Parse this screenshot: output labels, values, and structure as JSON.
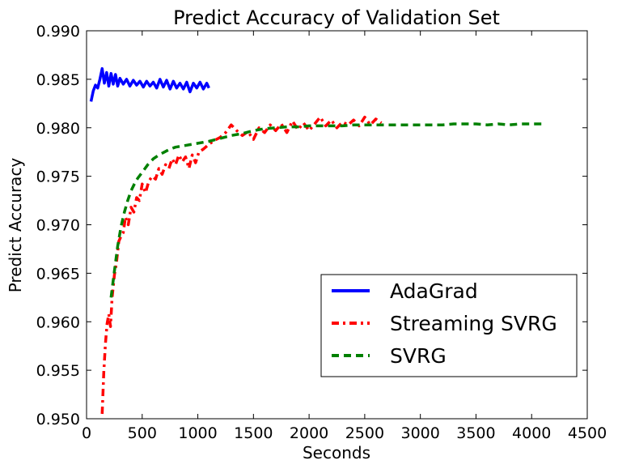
{
  "chart_data": {
    "type": "line",
    "title": "Predict Accuracy of Validation Set",
    "xlabel": "Seconds",
    "ylabel": "Predict Accuracy",
    "xlim": [
      0,
      4500
    ],
    "ylim": [
      0.95,
      0.99
    ],
    "xticks": [
      0,
      500,
      1000,
      1500,
      2000,
      2500,
      3000,
      3500,
      4000,
      4500
    ],
    "xtick_labels": [
      "0",
      "500",
      "1000",
      "1500",
      "2000",
      "2500",
      "3000",
      "3500",
      "4000",
      "4500"
    ],
    "yticks": [
      0.95,
      0.955,
      0.96,
      0.965,
      0.97,
      0.975,
      0.98,
      0.985,
      0.99
    ],
    "ytick_labels": [
      "0.950",
      "0.955",
      "0.960",
      "0.965",
      "0.970",
      "0.975",
      "0.980",
      "0.985",
      "0.990"
    ],
    "grid": false,
    "legend_position": "lower-right",
    "series": [
      {
        "name": "AdaGrad",
        "color": "#0000ff",
        "style": "solid",
        "x": [
          40,
          60,
          80,
          100,
          120,
          140,
          160,
          180,
          200,
          220,
          240,
          260,
          280,
          300,
          330,
          360,
          390,
          420,
          450,
          480,
          510,
          540,
          570,
          600,
          630,
          660,
          690,
          720,
          750,
          780,
          810,
          840,
          870,
          900,
          930,
          960,
          990,
          1020,
          1050,
          1080,
          1100
        ],
        "y": [
          0.9827,
          0.9838,
          0.9844,
          0.9841,
          0.985,
          0.9861,
          0.9846,
          0.9857,
          0.9843,
          0.9856,
          0.9845,
          0.9855,
          0.9843,
          0.9851,
          0.9845,
          0.985,
          0.9843,
          0.9849,
          0.9844,
          0.9848,
          0.9842,
          0.9848,
          0.9843,
          0.9847,
          0.9841,
          0.985,
          0.9842,
          0.9849,
          0.984,
          0.9848,
          0.9841,
          0.9846,
          0.984,
          0.9847,
          0.9837,
          0.9846,
          0.9841,
          0.9847,
          0.984,
          0.9846,
          0.9841
        ]
      },
      {
        "name": "Streaming SVRG",
        "color": "#ff0000",
        "style": "dashdot",
        "x": [
          140,
          155,
          170,
          185,
          200,
          215,
          230,
          250,
          270,
          290,
          310,
          330,
          350,
          375,
          400,
          425,
          450,
          475,
          500,
          530,
          560,
          590,
          620,
          650,
          680,
          710,
          740,
          770,
          800,
          830,
          860,
          890,
          920,
          950,
          980,
          1010,
          1050,
          1100,
          1150,
          1200,
          1250,
          1300,
          1350,
          1400,
          1450,
          1500,
          1550,
          1600,
          1650,
          1700,
          1750,
          1800,
          1850,
          1900,
          1950,
          2000,
          2050,
          2100,
          2150,
          2200,
          2250,
          2300,
          2350,
          2400,
          2450,
          2500,
          2550,
          2600,
          2650
        ],
        "y": [
          0.9505,
          0.9548,
          0.9578,
          0.9598,
          0.9608,
          0.9595,
          0.9625,
          0.9648,
          0.9662,
          0.9683,
          0.9688,
          0.9692,
          0.9708,
          0.97,
          0.9718,
          0.9713,
          0.9728,
          0.9725,
          0.9742,
          0.9733,
          0.9745,
          0.975,
          0.9747,
          0.9758,
          0.9752,
          0.9762,
          0.9758,
          0.9768,
          0.9762,
          0.9772,
          0.9765,
          0.977,
          0.9758,
          0.9772,
          0.9764,
          0.9775,
          0.9778,
          0.9783,
          0.9787,
          0.979,
          0.9795,
          0.9803,
          0.9797,
          0.9792,
          0.9796,
          0.9788,
          0.98,
          0.9795,
          0.9803,
          0.9797,
          0.9804,
          0.9795,
          0.9807,
          0.9798,
          0.9805,
          0.9797,
          0.9804,
          0.9811,
          0.9802,
          0.9808,
          0.98,
          0.9806,
          0.9803,
          0.9808,
          0.9802,
          0.9811,
          0.9803,
          0.9809,
          0.9805
        ]
      },
      {
        "name": "SVRG",
        "color": "#008000",
        "style": "dashed",
        "x": [
          220,
          250,
          280,
          310,
          340,
          370,
          400,
          430,
          460,
          500,
          550,
          600,
          650,
          700,
          750,
          800,
          850,
          900,
          950,
          1000,
          1050,
          1100,
          1200,
          1300,
          1400,
          1500,
          1600,
          1700,
          1800,
          1900,
          2000,
          2100,
          2200,
          2300,
          2400,
          2500,
          2600,
          2700,
          2800,
          2900,
          3000,
          3100,
          3200,
          3300,
          3400,
          3500,
          3600,
          3700,
          3800,
          3900,
          4000,
          4100
        ],
        "y": [
          0.9625,
          0.9652,
          0.9678,
          0.9698,
          0.9713,
          0.9725,
          0.9735,
          0.9742,
          0.9748,
          0.9754,
          0.9762,
          0.9768,
          0.9772,
          0.9775,
          0.9778,
          0.978,
          0.9781,
          0.9782,
          0.9783,
          0.9784,
          0.9785,
          0.9786,
          0.9789,
          0.9792,
          0.9794,
          0.9797,
          0.9799,
          0.98,
          0.9801,
          0.9801,
          0.9802,
          0.9802,
          0.9802,
          0.9802,
          0.9803,
          0.9803,
          0.9803,
          0.9803,
          0.9803,
          0.9803,
          0.9803,
          0.9803,
          0.9803,
          0.9804,
          0.9804,
          0.9804,
          0.9803,
          0.9804,
          0.9803,
          0.9804,
          0.9804,
          0.9804
        ]
      }
    ]
  }
}
